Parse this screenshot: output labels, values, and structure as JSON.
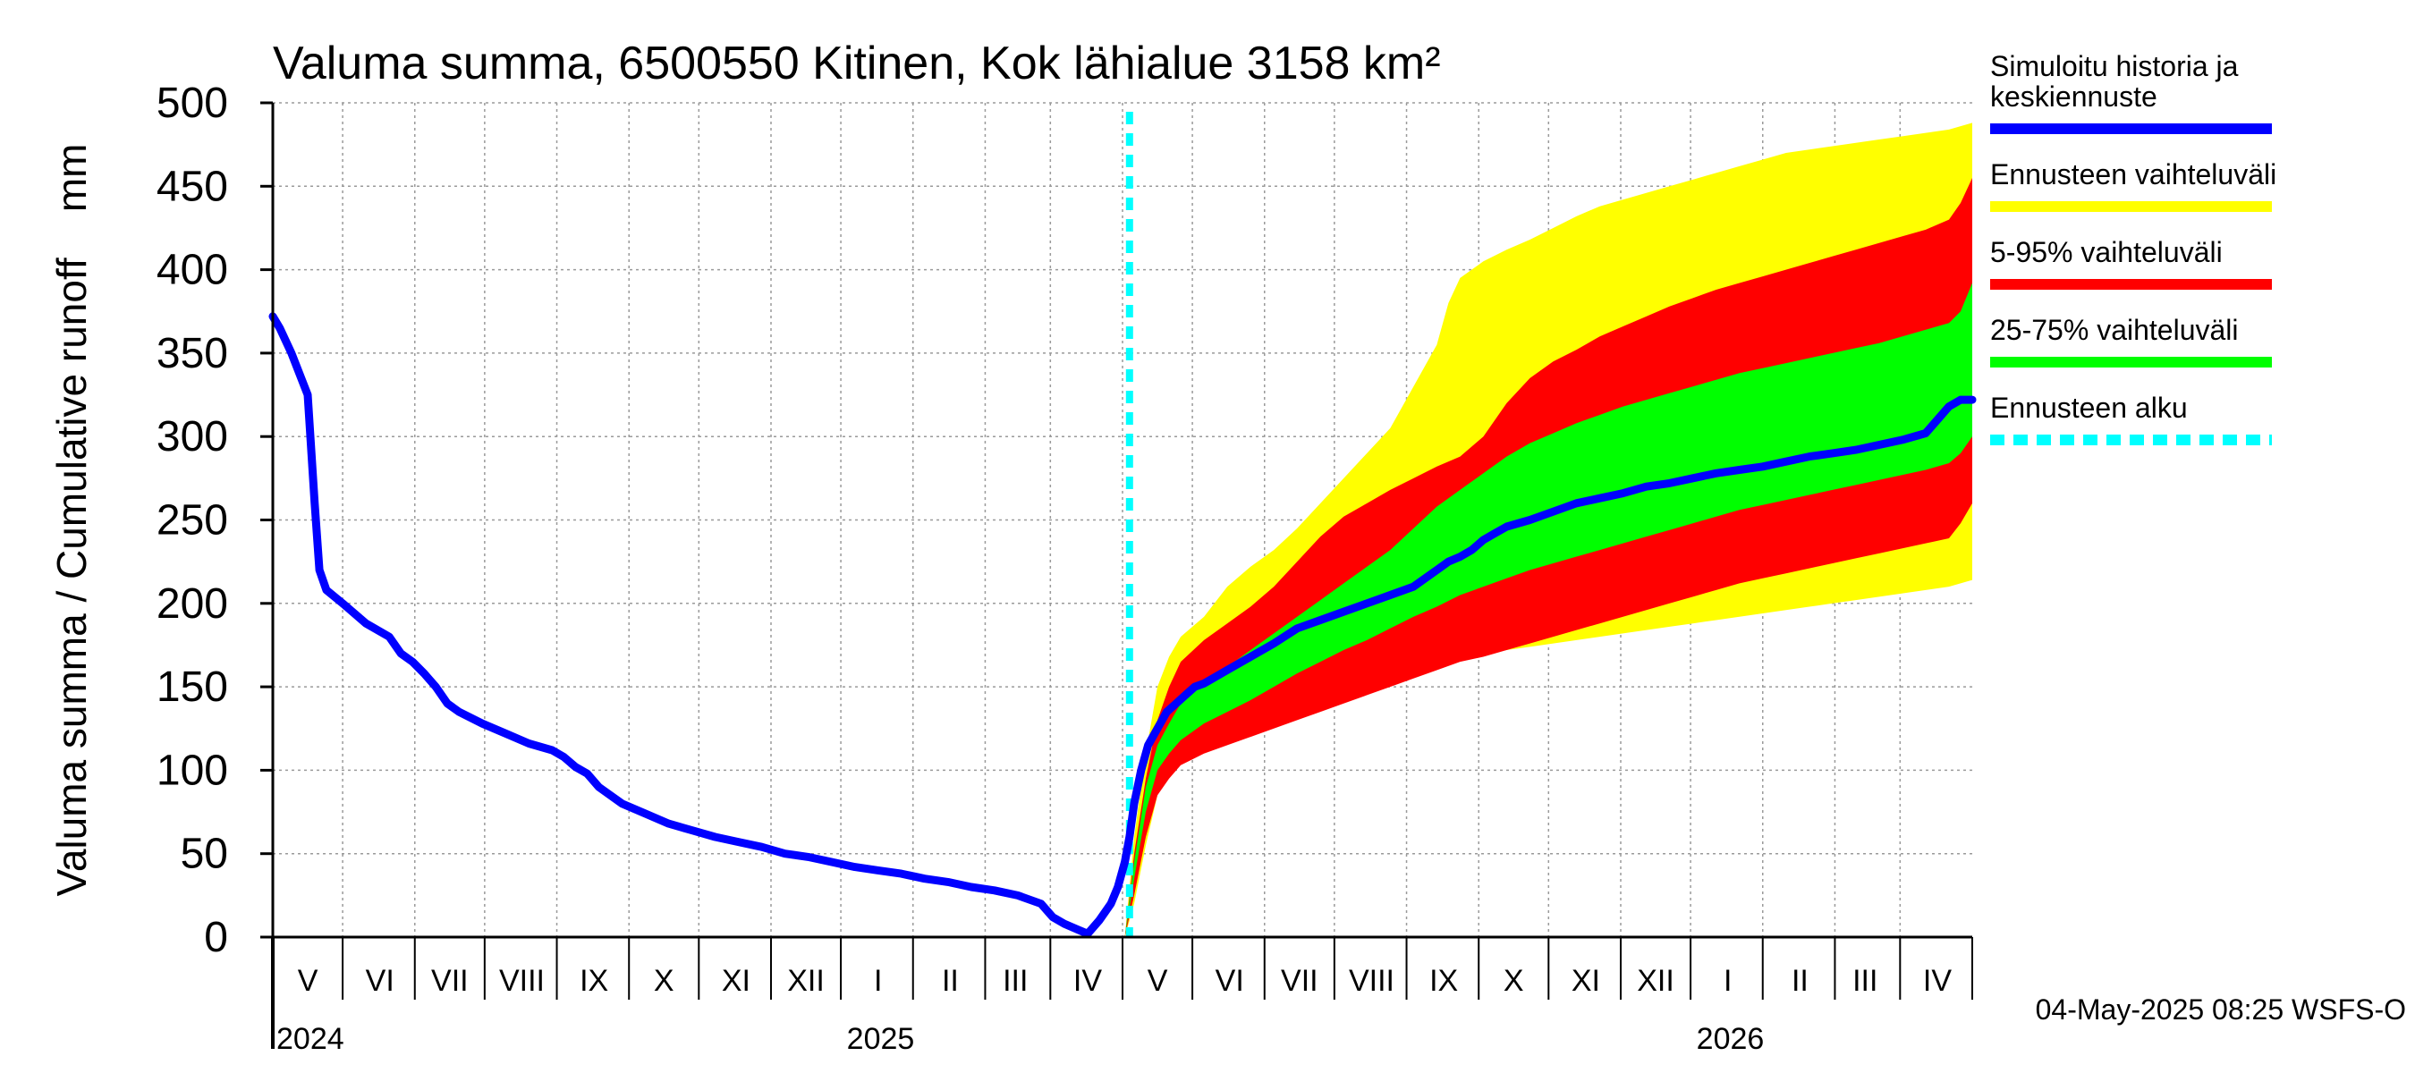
{
  "chart_data": {
    "type": "area",
    "title": "Valuma summa, 6500550 Kitinen, Kok lähialue 3158 km²",
    "ylabel": "Valuma summa / Cumulative runoff    mm",
    "ylim": [
      0,
      500
    ],
    "yticks": [
      "0",
      "50",
      "100",
      "150",
      "200",
      "250",
      "300",
      "350",
      "400",
      "450",
      "500"
    ],
    "x_range_days": [
      0,
      730
    ],
    "month_labels": [
      {
        "label": "V",
        "day": 15
      },
      {
        "label": "VI",
        "day": 46
      },
      {
        "label": "VII",
        "day": 76
      },
      {
        "label": "VIII",
        "day": 107
      },
      {
        "label": "IX",
        "day": 138
      },
      {
        "label": "X",
        "day": 168
      },
      {
        "label": "XI",
        "day": 199
      },
      {
        "label": "XII",
        "day": 229
      },
      {
        "label": "I",
        "day": 260
      },
      {
        "label": "II",
        "day": 291
      },
      {
        "label": "III",
        "day": 319
      },
      {
        "label": "IV",
        "day": 350
      },
      {
        "label": "V",
        "day": 380
      },
      {
        "label": "VI",
        "day": 411
      },
      {
        "label": "VII",
        "day": 441
      },
      {
        "label": "VIII",
        "day": 472
      },
      {
        "label": "IX",
        "day": 503
      },
      {
        "label": "X",
        "day": 533
      },
      {
        "label": "XI",
        "day": 564
      },
      {
        "label": "XII",
        "day": 594
      },
      {
        "label": "I",
        "day": 625
      },
      {
        "label": "II",
        "day": 656
      },
      {
        "label": "III",
        "day": 684
      },
      {
        "label": "IV",
        "day": 715
      }
    ],
    "month_boundaries": [
      30,
      61,
      91,
      122,
      153,
      183,
      214,
      244,
      275,
      306,
      334,
      365,
      395,
      426,
      456,
      487,
      518,
      548,
      579,
      609,
      640,
      671,
      699,
      730
    ],
    "year_boundaries": [
      245,
      610
    ],
    "year_labels": [
      {
        "label": "2024",
        "day": 0
      },
      {
        "label": "2025",
        "day": 245
      },
      {
        "label": "2026",
        "day": 610
      }
    ],
    "forecast_start_day": 368,
    "series": [
      {
        "name": "Simuloitu historia ja keskiennuste",
        "color": "#0000ff",
        "x": [
          0,
          3,
          8,
          15,
          18,
          20,
          23,
          30,
          40,
          50,
          55,
          60,
          65,
          70,
          75,
          80,
          90,
          100,
          110,
          120,
          125,
          130,
          135,
          140,
          150,
          160,
          170,
          180,
          190,
          200,
          210,
          220,
          230,
          240,
          250,
          260,
          270,
          280,
          290,
          300,
          310,
          320,
          330,
          335,
          340,
          345,
          350,
          355,
          360,
          363,
          366,
          368,
          370,
          373,
          376,
          380,
          384,
          388,
          392,
          396,
          400,
          405,
          410,
          420,
          430,
          440,
          450,
          460,
          470,
          480,
          490,
          500,
          505,
          510,
          515,
          520,
          525,
          530,
          540,
          550,
          560,
          570,
          580,
          590,
          600,
          610,
          620,
          630,
          640,
          650,
          660,
          670,
          680,
          690,
          700,
          710,
          715,
          720,
          725,
          730
        ],
        "y": [
          372,
          365,
          350,
          325,
          260,
          220,
          208,
          200,
          188,
          180,
          170,
          165,
          158,
          150,
          140,
          135,
          128,
          122,
          116,
          112,
          108,
          102,
          98,
          90,
          80,
          74,
          68,
          64,
          60,
          57,
          54,
          50,
          48,
          45,
          42,
          40,
          38,
          35,
          33,
          30,
          28,
          25,
          20,
          12,
          8,
          5,
          2,
          10,
          20,
          30,
          45,
          60,
          80,
          100,
          115,
          125,
          135,
          140,
          145,
          150,
          152,
          156,
          160,
          168,
          176,
          185,
          190,
          195,
          200,
          205,
          210,
          220,
          225,
          228,
          232,
          238,
          242,
          246,
          250,
          255,
          260,
          263,
          266,
          270,
          272,
          275,
          278,
          280,
          282,
          285,
          288,
          290,
          292,
          295,
          298,
          302,
          310,
          318,
          322,
          322
        ]
      },
      {
        "name": "Ennusteen vaihteluväli",
        "color": "#ffff00",
        "x": [
          366,
          370,
          375,
          380,
          385,
          390,
          400,
          410,
          420,
          430,
          440,
          450,
          460,
          470,
          480,
          490,
          500,
          505,
          510,
          520,
          530,
          540,
          550,
          560,
          570,
          580,
          590,
          600,
          610,
          620,
          630,
          640,
          650,
          660,
          670,
          680,
          690,
          700,
          710,
          720,
          725,
          730
        ],
        "lower": [
          0,
          20,
          55,
          85,
          100,
          110,
          120,
          128,
          135,
          140,
          145,
          150,
          155,
          158,
          160,
          162,
          164,
          166,
          168,
          170,
          172,
          174,
          176,
          178,
          180,
          182,
          184,
          186,
          188,
          190,
          192,
          194,
          196,
          198,
          200,
          202,
          204,
          206,
          208,
          210,
          212,
          214
        ],
        "upper": [
          0,
          60,
          110,
          150,
          168,
          180,
          192,
          210,
          222,
          232,
          245,
          260,
          275,
          290,
          305,
          330,
          355,
          380,
          395,
          405,
          412,
          418,
          425,
          432,
          438,
          442,
          446,
          450,
          454,
          458,
          462,
          466,
          470,
          472,
          474,
          476,
          478,
          480,
          482,
          484,
          486,
          488
        ]
      },
      {
        "name": "5-95% vaihteluväli",
        "color": "#ff0000",
        "x": [
          366,
          370,
          375,
          380,
          385,
          390,
          400,
          410,
          420,
          430,
          440,
          450,
          460,
          470,
          480,
          490,
          500,
          510,
          520,
          530,
          540,
          550,
          560,
          570,
          580,
          590,
          600,
          610,
          620,
          630,
          640,
          650,
          660,
          670,
          680,
          690,
          700,
          710,
          720,
          725,
          730
        ],
        "lower": [
          0,
          25,
          60,
          85,
          95,
          103,
          110,
          115,
          120,
          125,
          130,
          135,
          140,
          145,
          150,
          155,
          160,
          165,
          168,
          172,
          176,
          180,
          184,
          188,
          192,
          196,
          200,
          204,
          208,
          212,
          215,
          218,
          221,
          224,
          227,
          230,
          233,
          236,
          239,
          248,
          260
        ],
        "upper": [
          0,
          50,
          95,
          130,
          150,
          165,
          178,
          188,
          198,
          210,
          225,
          240,
          252,
          260,
          268,
          275,
          282,
          288,
          300,
          320,
          335,
          345,
          352,
          360,
          366,
          372,
          378,
          383,
          388,
          392,
          396,
          400,
          404,
          408,
          412,
          416,
          420,
          424,
          430,
          440,
          455
        ]
      },
      {
        "name": "25-75% vaihteluväli",
        "color": "#00ff00",
        "x": [
          366,
          370,
          375,
          380,
          385,
          390,
          400,
          410,
          420,
          430,
          440,
          450,
          460,
          470,
          480,
          490,
          500,
          510,
          520,
          530,
          540,
          550,
          560,
          570,
          580,
          590,
          600,
          610,
          620,
          630,
          640,
          650,
          660,
          670,
          680,
          690,
          700,
          710,
          720,
          725,
          730
        ],
        "lower": [
          0,
          35,
          75,
          100,
          110,
          118,
          128,
          135,
          142,
          150,
          158,
          165,
          172,
          178,
          185,
          192,
          198,
          205,
          210,
          215,
          220,
          224,
          228,
          232,
          236,
          240,
          244,
          248,
          252,
          256,
          259,
          262,
          265,
          268,
          271,
          274,
          277,
          280,
          284,
          290,
          300
        ],
        "upper": [
          0,
          45,
          90,
          115,
          128,
          140,
          152,
          162,
          172,
          182,
          192,
          202,
          212,
          222,
          232,
          245,
          258,
          268,
          278,
          288,
          296,
          302,
          308,
          313,
          318,
          322,
          326,
          330,
          334,
          338,
          341,
          344,
          347,
          350,
          353,
          356,
          360,
          364,
          368,
          375,
          392
        ]
      },
      {
        "name": "Ennusteen alku",
        "color": "#00ffff",
        "style": "dashed"
      }
    ],
    "legend": {
      "position": "right",
      "entries": [
        {
          "label_lines": [
            "Simuloitu historia ja",
            "keskiennuste"
          ],
          "color": "#0000ff",
          "style": "solid"
        },
        {
          "label_lines": [
            "Ennusteen vaihteluväli"
          ],
          "color": "#ffff00",
          "style": "solid"
        },
        {
          "label_lines": [
            "5-95% vaihteluväli"
          ],
          "color": "#ff0000",
          "style": "solid"
        },
        {
          "label_lines": [
            "25-75% vaihteluväli"
          ],
          "color": "#00ff00",
          "style": "solid"
        },
        {
          "label_lines": [
            "Ennusteen alku"
          ],
          "color": "#00ffff",
          "style": "dashed"
        }
      ]
    },
    "timestamp": "04-May-2025 08:25 WSFS-O"
  }
}
